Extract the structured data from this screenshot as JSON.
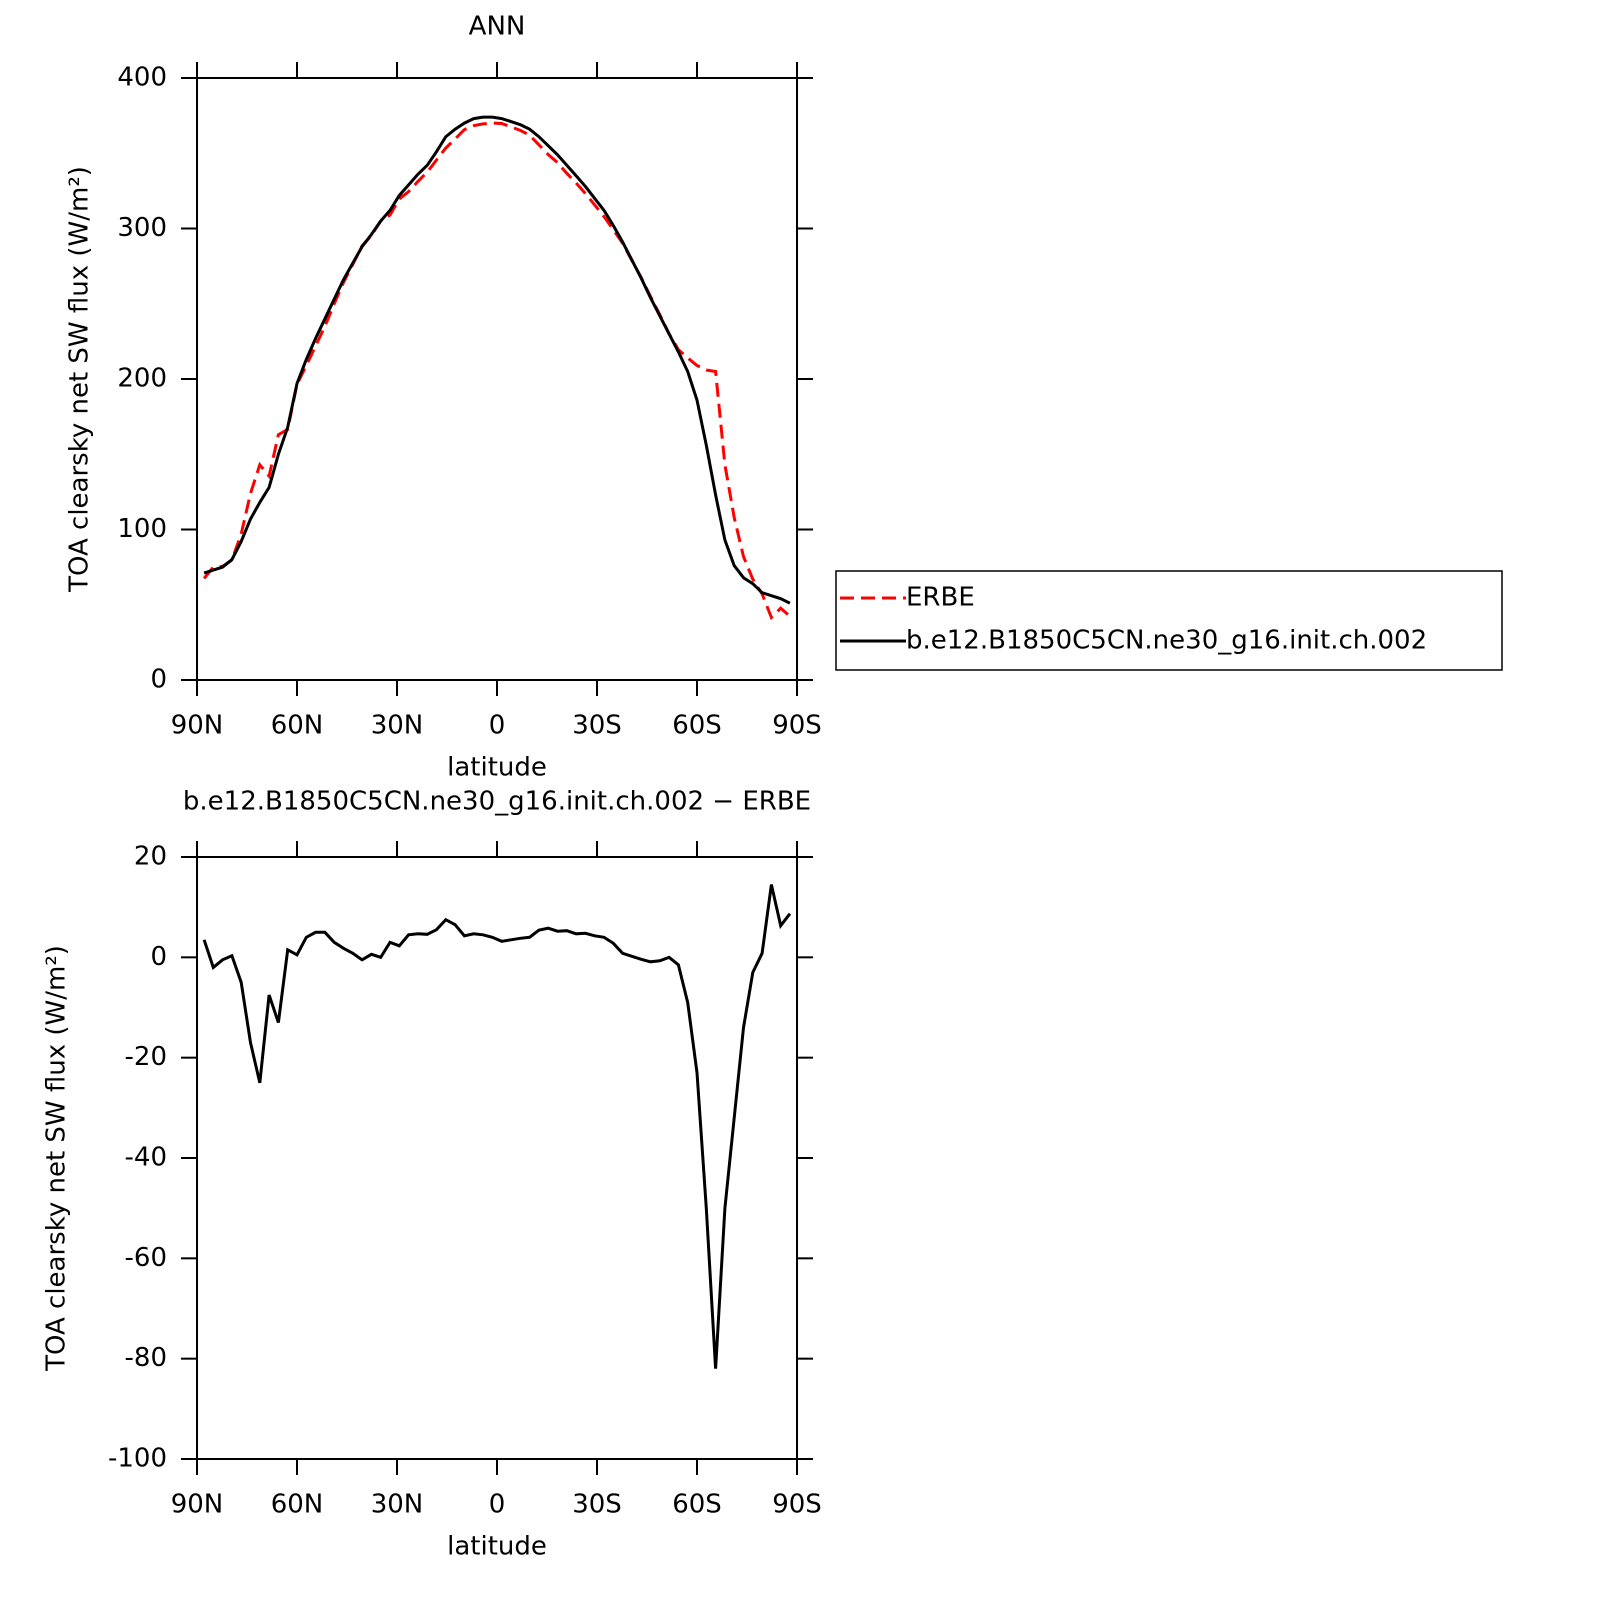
{
  "chart_data": [
    {
      "type": "line",
      "title": "ANN",
      "x_label": "latitude",
      "y_label": "TOA clearsky net SW flux (W/m²)",
      "x": [
        87.86,
        85.1,
        82.31,
        79.53,
        76.74,
        73.95,
        71.16,
        68.37,
        65.58,
        62.79,
        60.0,
        57.21,
        54.42,
        51.63,
        48.84,
        46.05,
        43.26,
        40.47,
        37.67,
        34.88,
        32.09,
        29.3,
        26.51,
        23.72,
        20.93,
        18.14,
        15.35,
        12.56,
        9.77,
        6.98,
        4.19,
        1.4,
        -1.4,
        -4.19,
        -6.98,
        -9.77,
        -12.56,
        -15.35,
        -18.14,
        -20.93,
        -23.72,
        -26.51,
        -29.3,
        -32.09,
        -34.88,
        -37.67,
        -40.47,
        -43.26,
        -46.05,
        -48.84,
        -51.63,
        -54.42,
        -57.21,
        -60.0,
        -62.79,
        -65.58,
        -68.37,
        -71.16,
        -73.95,
        -76.74,
        -79.53,
        -82.31,
        -85.1,
        -87.86
      ],
      "series": [
        {
          "name": "ERBE",
          "color": "#ff0000",
          "line_style": "dashed",
          "values": [
            67.5,
            75,
            75.5,
            79.7,
            97,
            124,
            143,
            135.5,
            163,
            166.5,
            196.5,
            209,
            222,
            235,
            250,
            264.2,
            276.2,
            288.5,
            295.4,
            305,
            309,
            319.7,
            324.5,
            331.3,
            337.4,
            345.5,
            353.5,
            359.5,
            365.7,
            368.3,
            369.5,
            370,
            369.8,
            367.5,
            365.2,
            362,
            355.6,
            349.2,
            343.8,
            336.7,
            330.3,
            323.2,
            315.7,
            308,
            299.2,
            290.2,
            278.8,
            267.4,
            254.9,
            242.7,
            230,
            219.5,
            214,
            209,
            206,
            205,
            143,
            108,
            82,
            67,
            57.2,
            41.5,
            47.7,
            42.3
          ]
        },
        {
          "name": "b.e12.B1850C5CN.ne30_g16.init.ch.002",
          "color": "#000000",
          "line_style": "solid",
          "values": [
            71,
            73,
            75,
            80,
            92,
            107,
            118,
            128,
            150,
            168,
            197,
            213,
            227,
            240,
            253,
            266,
            277,
            288,
            296,
            305,
            312,
            322,
            329,
            336,
            342,
            351,
            361,
            366,
            370,
            373,
            374,
            374,
            373,
            371,
            369,
            366,
            361,
            355,
            349,
            342,
            335,
            328,
            320,
            312,
            302,
            291,
            279,
            267,
            254,
            242,
            230,
            218,
            205,
            186,
            156,
            123,
            93,
            76,
            68,
            64,
            58,
            56,
            54,
            51
          ]
        }
      ],
      "xlim": [
        90,
        -90
      ],
      "ylim": [
        0,
        400
      ],
      "xticks": [
        {
          "value": 90,
          "label": "90N"
        },
        {
          "value": 60,
          "label": "60N"
        },
        {
          "value": 30,
          "label": "30N"
        },
        0,
        {
          "value": -30,
          "label": "30S"
        },
        {
          "value": -60,
          "label": "60S"
        },
        {
          "value": -90,
          "label": "90S"
        }
      ],
      "yticks": [
        0,
        100,
        200,
        300,
        400
      ],
      "legend": "right"
    },
    {
      "type": "line",
      "title": "b.e12.B1850C5CN.ne30_g16.init.ch.002 − ERBE",
      "x_label": "latitude",
      "y_label": "TOA clearsky net SW flux (W/m²)",
      "x": [
        87.86,
        85.1,
        82.31,
        79.53,
        76.74,
        73.95,
        71.16,
        68.37,
        65.58,
        62.79,
        60.0,
        57.21,
        54.42,
        51.63,
        48.84,
        46.05,
        43.26,
        40.47,
        37.67,
        34.88,
        32.09,
        29.3,
        26.51,
        23.72,
        20.93,
        18.14,
        15.35,
        12.56,
        9.77,
        6.98,
        4.19,
        1.4,
        -1.4,
        -4.19,
        -6.98,
        -9.77,
        -12.56,
        -15.35,
        -18.14,
        -20.93,
        -23.72,
        -26.51,
        -29.3,
        -32.09,
        -34.88,
        -37.67,
        -40.47,
        -43.26,
        -46.05,
        -48.84,
        -51.63,
        -54.42,
        -57.21,
        -60.0,
        -62.79,
        -65.58,
        -68.37,
        -71.16,
        -73.95,
        -76.74,
        -79.53,
        -82.31,
        -85.1,
        -87.86
      ],
      "series": [
        {
          "color": "#000000",
          "line_style": "solid",
          "values": [
            3.5,
            -2,
            -0.5,
            0.3,
            -5,
            -17,
            -25,
            -7.5,
            -13,
            1.5,
            0.5,
            4,
            5,
            5,
            3,
            1.8,
            0.8,
            -0.5,
            0.6,
            0,
            3,
            2.3,
            4.5,
            4.7,
            4.6,
            5.5,
            7.5,
            6.5,
            4.3,
            4.7,
            4.5,
            4,
            3.2,
            3.5,
            3.8,
            4,
            5.4,
            5.8,
            5.2,
            5.3,
            4.7,
            4.8,
            4.3,
            4,
            2.8,
            0.8,
            0.2,
            -0.4,
            -0.9,
            -0.7,
            0,
            -1.5,
            -9,
            -23,
            -50,
            -82,
            -50,
            -32,
            -14,
            -3,
            0.8,
            14.5,
            6.3,
            8.7
          ]
        }
      ],
      "xlim": [
        90,
        -90
      ],
      "ylim": [
        -100,
        20
      ],
      "xticks": [
        {
          "value": 90,
          "label": "90N"
        },
        {
          "value": 60,
          "label": "60N"
        },
        {
          "value": 30,
          "label": "30N"
        },
        0,
        {
          "value": -30,
          "label": "30S"
        },
        {
          "value": -60,
          "label": "60S"
        },
        {
          "value": -90,
          "label": "90S"
        }
      ],
      "yticks": [
        -100,
        -80,
        -60,
        -40,
        -20,
        0,
        20
      ],
      "legend": "none"
    }
  ]
}
